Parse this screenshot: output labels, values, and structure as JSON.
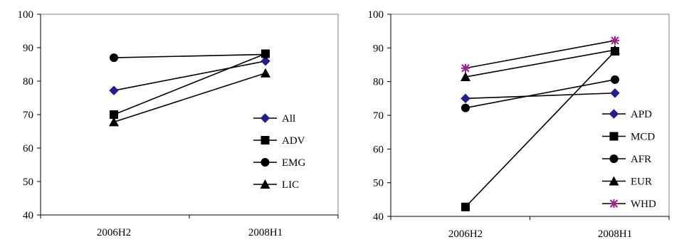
{
  "chart_data": [
    {
      "type": "line",
      "categories": [
        "2006H2",
        "2008H1"
      ],
      "ylim": [
        40,
        100
      ],
      "yticks": [
        "40",
        "50",
        "60",
        "70",
        "80",
        "90",
        "100"
      ],
      "grid": false,
      "legend_placement": "right",
      "series": [
        {
          "name": "All",
          "values": [
            77.2,
            86.0
          ],
          "marker": "diamond",
          "color": "#1f1f8f"
        },
        {
          "name": "ADV",
          "values": [
            70.0,
            88.2
          ],
          "marker": "square",
          "color": "#000000"
        },
        {
          "name": "EMG",
          "values": [
            87.0,
            88.0
          ],
          "marker": "circle",
          "color": "#000000"
        },
        {
          "name": "LIC",
          "values": [
            67.8,
            82.4
          ],
          "marker": "triangle",
          "color": "#000000"
        }
      ]
    },
    {
      "type": "line",
      "categories": [
        "2006H2",
        "2008H1"
      ],
      "ylim": [
        40,
        100
      ],
      "yticks": [
        "40",
        "50",
        "60",
        "70",
        "80",
        "90",
        "100"
      ],
      "grid": false,
      "legend_placement": "right",
      "series": [
        {
          "name": "APD",
          "values": [
            75.0,
            76.6
          ],
          "marker": "diamond",
          "color": "#1f1f8f"
        },
        {
          "name": "MCD",
          "values": [
            42.8,
            89.0
          ],
          "marker": "square",
          "color": "#000000"
        },
        {
          "name": "AFR",
          "values": [
            72.2,
            80.6
          ],
          "marker": "circle",
          "color": "#000000"
        },
        {
          "name": "EUR",
          "values": [
            81.4,
            89.4
          ],
          "marker": "triangle",
          "color": "#000000"
        },
        {
          "name": "WHD",
          "values": [
            84.0,
            92.2
          ],
          "marker": "star",
          "color": "#9b1f8f"
        }
      ]
    }
  ]
}
